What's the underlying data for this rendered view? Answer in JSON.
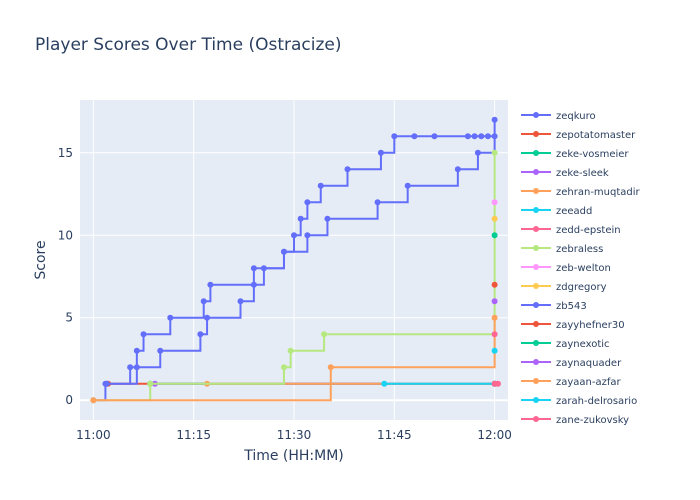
{
  "chart_data": {
    "type": "line",
    "line_shape": "step",
    "title": "Player Scores Over Time (Ostracize)",
    "xlabel": "Time (HH:MM)",
    "ylabel": "Score",
    "xlim": [
      -2,
      102
    ],
    "ylim": [
      -1.2,
      18.2
    ],
    "x_ticks": [
      {
        "v": 0,
        "label": "11:00"
      },
      {
        "v": 15,
        "label": "11:15"
      },
      {
        "v": 30,
        "label": "11:30"
      },
      {
        "v": 45,
        "label": "11:45"
      },
      {
        "v": 60,
        "label": "12:00"
      }
    ],
    "y_ticks": [
      0,
      5,
      10,
      15
    ],
    "x_unit": "minutes after 11:00",
    "grid": true,
    "legend_position": "right",
    "series": [
      {
        "name": "zeqkuro",
        "color": "#636efa",
        "x": [
          0,
          1.8,
          5.5,
          6.5,
          7.5,
          11.5,
          16.5,
          17.5,
          24,
          28.5,
          32,
          35,
          42.5,
          47,
          54.5,
          57.5,
          60
        ],
        "y": [
          0,
          1,
          2,
          3,
          4,
          5,
          6,
          7,
          8,
          9,
          10,
          11,
          12,
          13,
          14,
          15,
          17
        ]
      },
      {
        "name": "zepotatomaster",
        "color": "#ef553b",
        "x": [
          2.2,
          60
        ],
        "y": [
          1,
          1
        ]
      },
      {
        "name": "zeke-vosmeier",
        "color": "#00cc96",
        "x": [
          8.5,
          60
        ],
        "y": [
          1,
          1
        ]
      },
      {
        "name": "zeke-sleek",
        "color": "#ab63fa",
        "x": [
          9.2,
          60
        ],
        "y": [
          1,
          1
        ]
      },
      {
        "name": "zehran-muqtadir",
        "color": "#ffa15a",
        "x": [
          17,
          60
        ],
        "y": [
          1,
          1
        ]
      },
      {
        "name": "zeeadd",
        "color": "#19d3f3",
        "x": [
          43.5,
          60
        ],
        "y": [
          1,
          1
        ]
      },
      {
        "name": "zedd-epstein",
        "color": "#ff6692",
        "x": [
          60.5,
          60
        ],
        "y": [
          1,
          1
        ]
      },
      {
        "name": "zebraless",
        "color": "#b6e880",
        "x": [
          0,
          8.5,
          28.5,
          29.5,
          34.5,
          60
        ],
        "y": [
          0,
          1,
          2,
          3,
          4,
          15
        ]
      },
      {
        "name": "zeb-welton",
        "color": "#ff97ff",
        "x": [
          60
        ],
        "y": [
          12
        ]
      },
      {
        "name": "zdgregory",
        "color": "#fecb52",
        "x": [
          60
        ],
        "y": [
          11
        ]
      },
      {
        "name": "zb543",
        "color": "#636efa",
        "x": [
          2,
          6.5,
          10,
          16,
          17,
          22,
          24,
          25.5,
          28.5,
          30,
          31,
          32,
          34,
          38,
          43,
          45,
          48,
          51,
          56,
          57,
          58,
          59,
          60
        ],
        "y": [
          1,
          2,
          3,
          4,
          5,
          6,
          7,
          8,
          9,
          10,
          11,
          12,
          13,
          14,
          15,
          16,
          16,
          16,
          16,
          16,
          16,
          16,
          16
        ]
      },
      {
        "name": "zayyhefner30",
        "color": "#ef553b",
        "x": [
          60
        ],
        "y": [
          7
        ]
      },
      {
        "name": "zaynexotic",
        "color": "#00cc96",
        "x": [
          60
        ],
        "y": [
          10
        ]
      },
      {
        "name": "zaynaquader",
        "color": "#ab63fa",
        "x": [
          60
        ],
        "y": [
          6
        ]
      },
      {
        "name": "zayaan-azfar",
        "color": "#ffa15a",
        "x": [
          0,
          35.5,
          60
        ],
        "y": [
          0,
          2,
          5
        ]
      },
      {
        "name": "zarah-delrosario",
        "color": "#19d3f3",
        "x": [
          60
        ],
        "y": [
          3
        ]
      },
      {
        "name": "zane-zukovsky",
        "color": "#ff6692",
        "x": [
          60
        ],
        "y": [
          4
        ]
      }
    ]
  }
}
